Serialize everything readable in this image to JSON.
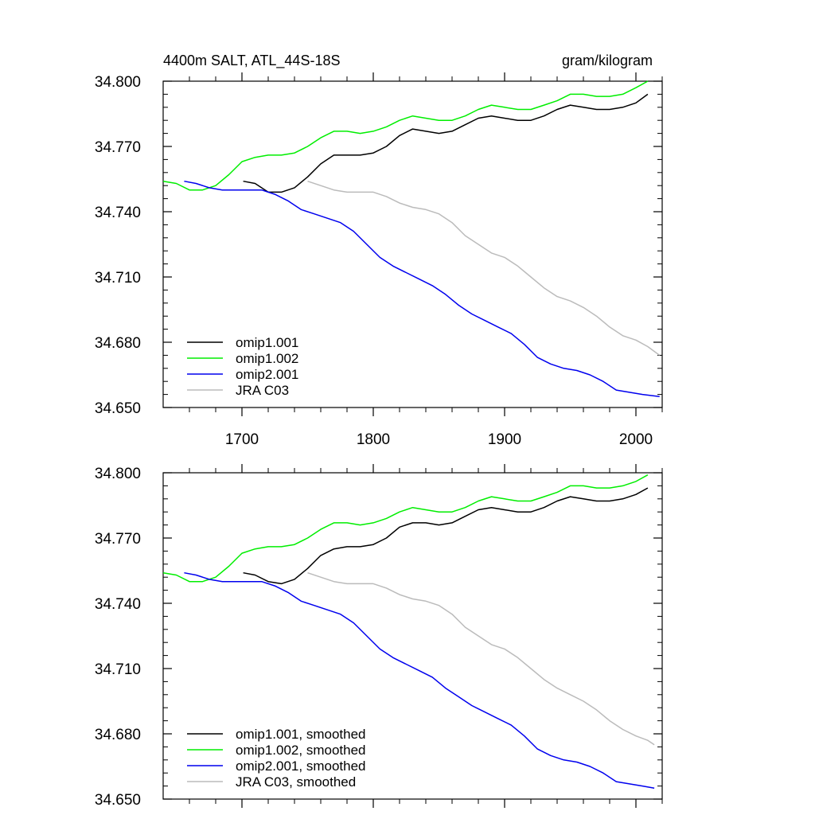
{
  "header": {
    "left": "4400m SALT, ATL_44S-18S",
    "right": "gram/kilogram"
  },
  "chart_data": [
    {
      "type": "line",
      "title": "4400m SALT, ATL_44S-18S",
      "units": "gram/kilogram",
      "xlim": [
        1640,
        2020
      ],
      "ylim": [
        34.65,
        34.8
      ],
      "yticks": [
        "34.800",
        "34.770",
        "34.740",
        "34.710",
        "34.680",
        "34.650"
      ],
      "xticks": [
        "1700",
        "1800",
        "1900",
        "2000"
      ],
      "legend_position": "bottom-left",
      "series": [
        {
          "name": "omip1.001",
          "color": "#000000",
          "x": [
            1701,
            1710,
            1720,
            1730,
            1740,
            1750,
            1760,
            1770,
            1780,
            1790,
            1800,
            1810,
            1820,
            1830,
            1840,
            1850,
            1860,
            1870,
            1880,
            1890,
            1900,
            1910,
            1920,
            1930,
            1940,
            1950,
            1960,
            1970,
            1980,
            1990,
            2000,
            2009
          ],
          "y": [
            34.754,
            34.753,
            34.749,
            34.749,
            34.751,
            34.756,
            34.762,
            34.766,
            34.766,
            34.766,
            34.767,
            34.77,
            34.775,
            34.778,
            34.777,
            34.776,
            34.777,
            34.78,
            34.783,
            34.784,
            34.783,
            34.782,
            34.782,
            34.784,
            34.787,
            34.789,
            34.788,
            34.787,
            34.787,
            34.788,
            34.79,
            34.794
          ]
        },
        {
          "name": "omip1.002",
          "color": "#00ee00",
          "x": [
            1640,
            1650,
            1660,
            1670,
            1680,
            1690,
            1700,
            1710,
            1720,
            1730,
            1740,
            1750,
            1760,
            1770,
            1780,
            1790,
            1800,
            1810,
            1820,
            1830,
            1840,
            1850,
            1860,
            1870,
            1880,
            1890,
            1900,
            1910,
            1920,
            1930,
            1940,
            1950,
            1960,
            1970,
            1980,
            1990,
            2000,
            2009
          ],
          "y": [
            34.754,
            34.753,
            34.75,
            34.75,
            34.752,
            34.757,
            34.763,
            34.765,
            34.766,
            34.766,
            34.767,
            34.77,
            34.774,
            34.777,
            34.777,
            34.776,
            34.777,
            34.779,
            34.782,
            34.784,
            34.783,
            34.782,
            34.782,
            34.784,
            34.787,
            34.789,
            34.788,
            34.787,
            34.787,
            34.789,
            34.791,
            34.794,
            34.794,
            34.793,
            34.793,
            34.794,
            34.797,
            34.8
          ]
        },
        {
          "name": "omip2.001",
          "color": "#0000ee",
          "x": [
            1656,
            1665,
            1675,
            1685,
            1695,
            1705,
            1715,
            1725,
            1735,
            1745,
            1755,
            1765,
            1775,
            1785,
            1795,
            1805,
            1815,
            1825,
            1835,
            1845,
            1855,
            1865,
            1875,
            1885,
            1895,
            1905,
            1915,
            1925,
            1935,
            1945,
            1955,
            1965,
            1975,
            1985,
            1995,
            2005,
            2018
          ],
          "y": [
            34.754,
            34.753,
            34.751,
            34.75,
            34.75,
            34.75,
            34.75,
            34.748,
            34.745,
            34.741,
            34.739,
            34.737,
            34.735,
            34.731,
            34.725,
            34.719,
            34.715,
            34.712,
            34.709,
            34.706,
            34.702,
            34.697,
            34.693,
            34.69,
            34.687,
            34.684,
            34.679,
            34.673,
            34.67,
            34.668,
            34.667,
            34.665,
            34.662,
            34.658,
            34.657,
            34.656,
            34.655
          ]
        },
        {
          "name": "JRA C03",
          "color": "#bbbbbb",
          "x": [
            1750,
            1760,
            1770,
            1780,
            1790,
            1800,
            1810,
            1820,
            1830,
            1840,
            1850,
            1860,
            1870,
            1880,
            1890,
            1900,
            1910,
            1920,
            1930,
            1940,
            1950,
            1960,
            1970,
            1980,
            1990,
            2000,
            2009,
            2018
          ],
          "y": [
            34.754,
            34.752,
            34.75,
            34.749,
            34.749,
            34.749,
            34.747,
            34.744,
            34.742,
            34.741,
            34.739,
            34.735,
            34.729,
            34.725,
            34.721,
            34.719,
            34.715,
            34.71,
            34.705,
            34.701,
            34.699,
            34.696,
            34.692,
            34.687,
            34.683,
            34.681,
            34.678,
            34.674
          ]
        }
      ]
    },
    {
      "type": "line",
      "xlim": [
        1640,
        2020
      ],
      "ylim": [
        34.65,
        34.8
      ],
      "yticks": [
        "34.800",
        "34.770",
        "34.740",
        "34.710",
        "34.680",
        "34.650"
      ],
      "legend_position": "bottom-left",
      "series": [
        {
          "name": "omip1.001, smoothed",
          "color": "#000000",
          "x": [
            1701,
            1710,
            1720,
            1730,
            1740,
            1750,
            1760,
            1770,
            1780,
            1790,
            1800,
            1810,
            1820,
            1830,
            1840,
            1850,
            1860,
            1870,
            1880,
            1890,
            1900,
            1910,
            1920,
            1930,
            1940,
            1950,
            1960,
            1970,
            1980,
            1990,
            2000,
            2009
          ],
          "y": [
            34.754,
            34.753,
            34.75,
            34.749,
            34.751,
            34.756,
            34.762,
            34.765,
            34.766,
            34.766,
            34.767,
            34.77,
            34.775,
            34.777,
            34.777,
            34.776,
            34.777,
            34.78,
            34.783,
            34.784,
            34.783,
            34.782,
            34.782,
            34.784,
            34.787,
            34.789,
            34.788,
            34.787,
            34.787,
            34.788,
            34.79,
            34.793
          ]
        },
        {
          "name": "omip1.002, smoothed",
          "color": "#00ee00",
          "x": [
            1640,
            1650,
            1660,
            1670,
            1680,
            1690,
            1700,
            1710,
            1720,
            1730,
            1740,
            1750,
            1760,
            1770,
            1780,
            1790,
            1800,
            1810,
            1820,
            1830,
            1840,
            1850,
            1860,
            1870,
            1880,
            1890,
            1900,
            1910,
            1920,
            1930,
            1940,
            1950,
            1960,
            1970,
            1980,
            1990,
            2000,
            2009
          ],
          "y": [
            34.754,
            34.753,
            34.75,
            34.75,
            34.752,
            34.757,
            34.763,
            34.765,
            34.766,
            34.766,
            34.767,
            34.77,
            34.774,
            34.777,
            34.777,
            34.776,
            34.777,
            34.779,
            34.782,
            34.784,
            34.783,
            34.782,
            34.782,
            34.784,
            34.787,
            34.789,
            34.788,
            34.787,
            34.787,
            34.789,
            34.791,
            34.794,
            34.794,
            34.793,
            34.793,
            34.794,
            34.796,
            34.799
          ]
        },
        {
          "name": "omip2.001, smoothed",
          "color": "#0000ee",
          "x": [
            1656,
            1665,
            1675,
            1685,
            1695,
            1705,
            1715,
            1725,
            1735,
            1745,
            1755,
            1765,
            1775,
            1785,
            1795,
            1805,
            1815,
            1825,
            1835,
            1845,
            1855,
            1865,
            1875,
            1885,
            1895,
            1905,
            1915,
            1925,
            1935,
            1945,
            1955,
            1965,
            1975,
            1985,
            1995,
            2005,
            2014
          ],
          "y": [
            34.754,
            34.753,
            34.751,
            34.75,
            34.75,
            34.75,
            34.75,
            34.748,
            34.745,
            34.741,
            34.739,
            34.737,
            34.735,
            34.731,
            34.725,
            34.719,
            34.715,
            34.712,
            34.709,
            34.706,
            34.701,
            34.697,
            34.693,
            34.69,
            34.687,
            34.684,
            34.679,
            34.673,
            34.67,
            34.668,
            34.667,
            34.665,
            34.662,
            34.658,
            34.657,
            34.656,
            34.655
          ]
        },
        {
          "name": "JRA C03, smoothed",
          "color": "#bbbbbb",
          "x": [
            1750,
            1760,
            1770,
            1780,
            1790,
            1800,
            1810,
            1820,
            1830,
            1840,
            1850,
            1860,
            1870,
            1880,
            1890,
            1900,
            1910,
            1920,
            1930,
            1940,
            1950,
            1960,
            1970,
            1980,
            1990,
            2000,
            2009,
            2014
          ],
          "y": [
            34.754,
            34.752,
            34.75,
            34.749,
            34.749,
            34.749,
            34.747,
            34.744,
            34.742,
            34.741,
            34.739,
            34.735,
            34.729,
            34.725,
            34.721,
            34.719,
            34.715,
            34.71,
            34.705,
            34.701,
            34.698,
            34.695,
            34.691,
            34.686,
            34.682,
            34.679,
            34.677,
            34.675
          ]
        }
      ]
    }
  ]
}
